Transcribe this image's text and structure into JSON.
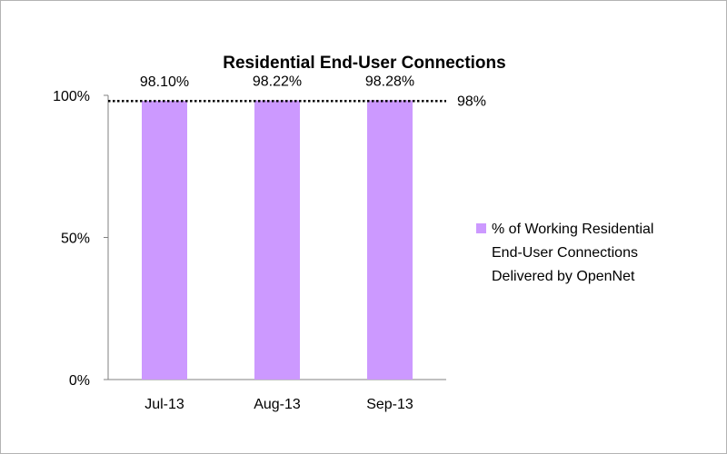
{
  "chart_data": {
    "type": "bar",
    "title": "Residential End-User Connections",
    "categories": [
      "Jul-13",
      "Aug-13",
      "Sep-13"
    ],
    "series": [
      {
        "name": "% of Working Residential End-User Connections Delivered by OpenNet",
        "values": [
          98.1,
          98.22,
          98.28
        ],
        "color": "#cc99ff"
      }
    ],
    "data_labels": [
      "98.10%",
      "98.22%",
      "98.28%"
    ],
    "y_ticks": [
      {
        "value": 0,
        "label": "0%"
      },
      {
        "value": 50,
        "label": "50%"
      },
      {
        "value": 100,
        "label": "100%"
      }
    ],
    "ylim": [
      0,
      100
    ],
    "grid": false,
    "reference_line": {
      "value": 98,
      "label": "98%",
      "style": "dotted"
    },
    "legend": {
      "position": "right",
      "lines": [
        "% of Working Residential",
        "End-User Connections",
        "Delivered by OpenNet"
      ]
    },
    "xlabel": "",
    "ylabel": ""
  }
}
